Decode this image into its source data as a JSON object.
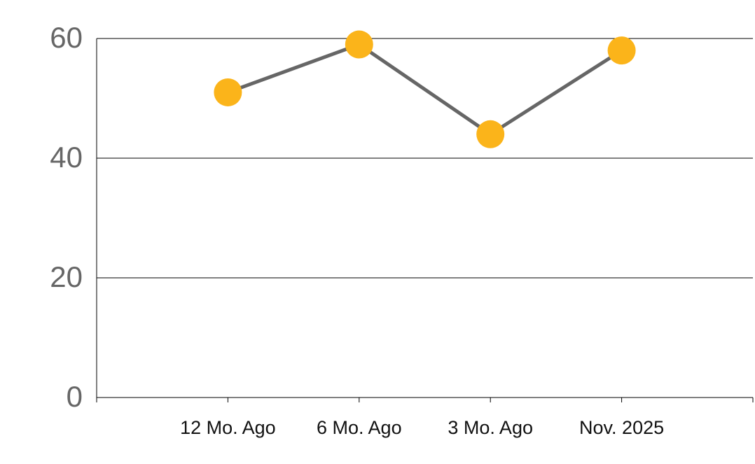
{
  "chart_data": {
    "type": "line",
    "categories": [
      "12 Mo. Ago",
      "6 Mo. Ago",
      "3 Mo. Ago",
      "Nov. 2025"
    ],
    "series": [
      {
        "values": [
          51,
          59,
          44,
          58
        ],
        "color": "#666666",
        "marker_color": "#fbb41a"
      }
    ],
    "ylim": [
      0,
      60
    ],
    "yticks": [
      0,
      20,
      40,
      60
    ],
    "grid": true
  }
}
